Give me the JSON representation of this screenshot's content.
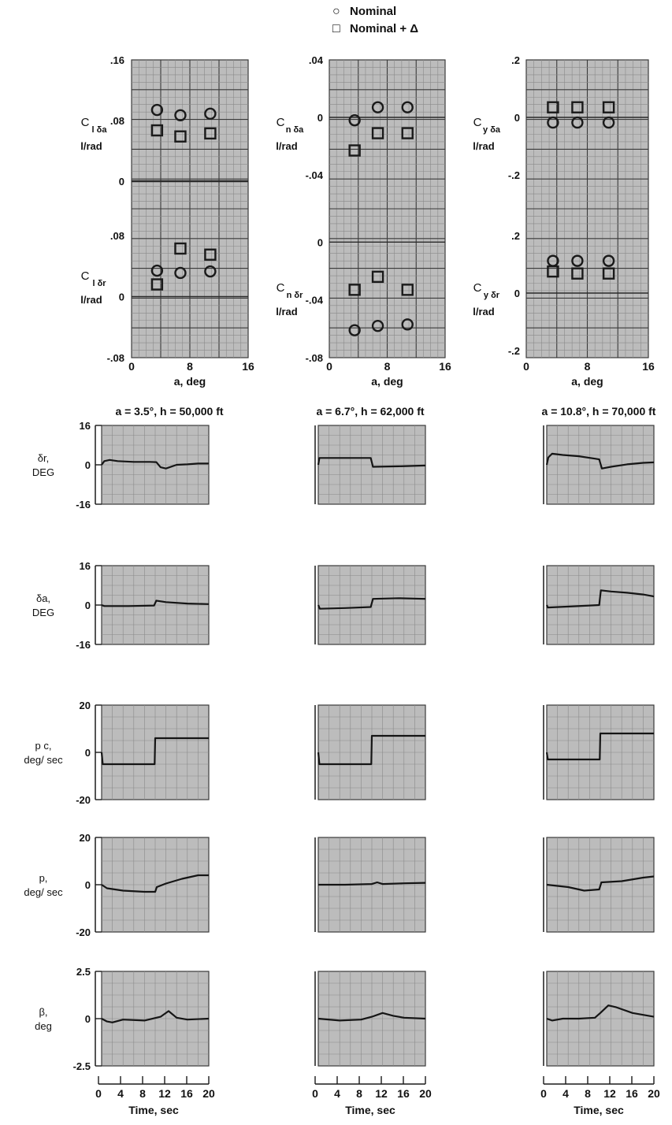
{
  "legend": [
    {
      "symbol": "circle",
      "label": "Nominal"
    },
    {
      "symbol": "square",
      "label": "Nominal + Δ"
    }
  ],
  "colors": {
    "grid_fill": "#bcbcbc",
    "grid_line": "#8a8a8a",
    "grid_major": "#3a3a3a",
    "trace": "#151515",
    "text": "#111111"
  },
  "chart_data": [
    {
      "type": "scatter",
      "column": 0,
      "xlabel": "a, deg",
      "xlim": [
        0,
        16
      ],
      "xticks": [
        "0",
        "8",
        "16"
      ],
      "panels": [
        {
          "ylabel": [
            "C",
            "l δa",
            "l/rad"
          ],
          "ylim": [
            0,
            0.16
          ],
          "yticks": [
            ".16",
            ".08",
            "0"
          ],
          "series": [
            {
              "name": "Nominal",
              "marker": "circle",
              "x": [
                3.5,
                6.7,
                10.8
              ],
              "y": [
                0.094,
                0.087,
                0.089
              ]
            },
            {
              "name": "Nominal + Δ",
              "marker": "square",
              "x": [
                3.5,
                6.7,
                10.8
              ],
              "y": [
                0.067,
                0.059,
                0.063
              ]
            }
          ]
        },
        {
          "ylabel": [
            "C",
            "l δr",
            "l/rad"
          ],
          "ylim": [
            -0.08,
            0.16
          ],
          "yticks": [
            ".08",
            "0",
            "-.08"
          ],
          "series": [
            {
              "name": "Nominal",
              "marker": "circle",
              "x": [
                3.5,
                6.7,
                10.8
              ],
              "y": [
                0.034,
                0.031,
                0.033
              ]
            },
            {
              "name": "Nominal + Δ",
              "marker": "square",
              "x": [
                3.5,
                6.7,
                10.8
              ],
              "y": [
                0.016,
                0.063,
                0.055
              ]
            }
          ]
        }
      ]
    },
    {
      "type": "scatter",
      "column": 1,
      "xlabel": "a, deg",
      "xlim": [
        0,
        16
      ],
      "xticks": [
        "0",
        "8",
        "16"
      ],
      "panels": [
        {
          "ylabel": [
            "C",
            "n δa",
            "l/rad"
          ],
          "ylim": [
            -0.04,
            0.04
          ],
          "yticks": [
            ".04",
            "0",
            "-.04"
          ],
          "series": [
            {
              "name": "Nominal",
              "marker": "circle",
              "x": [
                3.5,
                6.7,
                10.8
              ],
              "y": [
                -0.002,
                0.007,
                0.007
              ]
            },
            {
              "name": "Nominal + Δ",
              "marker": "square",
              "x": [
                3.5,
                6.7,
                10.8
              ],
              "y": [
                -0.023,
                -0.011,
                -0.011
              ]
            }
          ]
        },
        {
          "ylabel": [
            "C",
            "n δr",
            "l/rad"
          ],
          "ylim": [
            -0.08,
            0.04
          ],
          "yticks": [
            "0",
            "-.04",
            "-.08"
          ],
          "series": [
            {
              "name": "Nominal",
              "marker": "circle",
              "x": [
                3.5,
                6.7,
                10.8
              ],
              "y": [
                -0.061,
                -0.058,
                -0.057
              ]
            },
            {
              "name": "Nominal + Δ",
              "marker": "square",
              "x": [
                3.5,
                6.7,
                10.8
              ],
              "y": [
                -0.033,
                -0.024,
                -0.033
              ]
            }
          ]
        }
      ]
    },
    {
      "type": "scatter",
      "column": 2,
      "xlabel": "a, deg",
      "xlim": [
        0,
        16
      ],
      "xticks": [
        "0",
        "8",
        "16"
      ],
      "panels": [
        {
          "ylabel": [
            "C",
            "y δa",
            "l/rad"
          ],
          "ylim": [
            -0.2,
            0.2
          ],
          "yticks": [
            ".2",
            "0",
            "-.2"
          ],
          "series": [
            {
              "name": "Nominal",
              "marker": "circle",
              "x": [
                3.5,
                6.7,
                10.8
              ],
              "y": [
                -0.018,
                -0.018,
                -0.018
              ]
            },
            {
              "name": "Nominal + Δ",
              "marker": "square",
              "x": [
                3.5,
                6.7,
                10.8
              ],
              "y": [
                0.035,
                0.035,
                0.035
              ]
            }
          ]
        },
        {
          "ylabel": [
            "C",
            "y δr",
            "l/rad"
          ],
          "ylim": [
            -0.2,
            0.2
          ],
          "yticks": [
            ".2",
            "0",
            "-.2"
          ],
          "series": [
            {
              "name": "Nominal",
              "marker": "circle",
              "x": [
                3.5,
                6.7,
                10.8
              ],
              "y": [
                0.112,
                0.112,
                0.112
              ]
            },
            {
              "name": "Nominal + Δ",
              "marker": "square",
              "x": [
                3.5,
                6.7,
                10.8
              ],
              "y": [
                0.075,
                0.068,
                0.068
              ]
            }
          ]
        }
      ]
    },
    {
      "type": "line",
      "column": 0,
      "title": "a = 3.5°, h = 50,000 ft",
      "xlabel": "Time, sec",
      "xlim": [
        0,
        20
      ],
      "xticks": [
        "0",
        "4",
        "8",
        "12",
        "16",
        "20"
      ],
      "panels": [
        {
          "ylabel": [
            "δr,",
            "DEG"
          ],
          "ylim": [
            -16,
            16
          ],
          "yticks": [
            "16",
            "0",
            "-16"
          ],
          "x": [
            0,
            0.5,
            1.5,
            3,
            6,
            9,
            10.2,
            11,
            12,
            14,
            16,
            18,
            20
          ],
          "y": [
            0,
            1.5,
            2,
            1.5,
            1.2,
            1.2,
            1.1,
            -1,
            -1.5,
            0,
            0.2,
            0.5,
            0.5
          ]
        },
        {
          "ylabel": [
            "δa,",
            "DEG"
          ],
          "ylim": [
            -16,
            16
          ],
          "yticks": [
            "16",
            "0",
            "-16"
          ],
          "x": [
            0,
            0.5,
            5,
            9.8,
            10.2,
            12,
            16,
            20
          ],
          "y": [
            0,
            -0.4,
            -0.4,
            -0.2,
            1.8,
            1.2,
            0.6,
            0.4
          ]
        },
        {
          "ylabel": [
            "p c,",
            "deg/ sec"
          ],
          "ylim": [
            -20,
            20
          ],
          "yticks": [
            "20",
            "0",
            "-20"
          ],
          "x": [
            0,
            0.2,
            9.9,
            10,
            20
          ],
          "y": [
            0,
            -5,
            -5,
            6,
            6
          ]
        },
        {
          "ylabel": [
            "p,",
            "deg/ sec"
          ],
          "ylim": [
            -20,
            20
          ],
          "yticks": [
            "20",
            "0",
            "-20"
          ],
          "x": [
            0,
            1,
            4,
            8,
            10,
            10.3,
            12,
            15,
            18,
            20
          ],
          "y": [
            0,
            -1.5,
            -2.5,
            -3,
            -3,
            -1,
            0.5,
            2.5,
            4,
            4
          ]
        },
        {
          "ylabel": [
            "β,",
            "deg"
          ],
          "ylim": [
            -2.5,
            2.5
          ],
          "yticks": [
            "2.5",
            "0",
            "-2.5"
          ],
          "x": [
            0,
            1,
            2,
            4,
            8,
            11,
            12.5,
            14,
            16,
            20
          ],
          "y": [
            0,
            -0.15,
            -0.2,
            -0.05,
            -0.1,
            0.1,
            0.4,
            0.05,
            -0.05,
            0
          ]
        }
      ]
    },
    {
      "type": "line",
      "column": 1,
      "title": "a = 6.7°, h = 62,000 ft",
      "xlabel": "Time, sec",
      "xlim": [
        0,
        20
      ],
      "xticks": [
        "0",
        "4",
        "8",
        "12",
        "16",
        "20"
      ],
      "panels": [
        {
          "ylabel": [],
          "ylim": [
            -16,
            16
          ],
          "yticks": [],
          "x": [
            0,
            0.2,
            5,
            9.8,
            10.2,
            15,
            20
          ],
          "y": [
            0,
            2.8,
            2.8,
            2.8,
            -0.8,
            -0.6,
            -0.3
          ]
        },
        {
          "ylabel": [],
          "ylim": [
            -16,
            16
          ],
          "yticks": [],
          "x": [
            0,
            0.3,
            5,
            9.8,
            10.2,
            15,
            20
          ],
          "y": [
            0,
            -1.5,
            -1.2,
            -0.8,
            2.5,
            2.8,
            2.5
          ]
        },
        {
          "ylabel": [],
          "ylim": [
            -20,
            20
          ],
          "yticks": [],
          "x": [
            0,
            0.2,
            9.9,
            10,
            20
          ],
          "y": [
            0,
            -5,
            -5,
            7,
            7
          ]
        },
        {
          "ylabel": [],
          "ylim": [
            -20,
            20
          ],
          "yticks": [],
          "x": [
            0,
            5,
            10,
            11,
            12,
            16,
            20
          ],
          "y": [
            0,
            0,
            0.3,
            1,
            0.3,
            0.6,
            0.8
          ]
        },
        {
          "ylabel": [],
          "ylim": [
            -2.5,
            2.5
          ],
          "yticks": [],
          "x": [
            0,
            4,
            8,
            10,
            12,
            14,
            16,
            20
          ],
          "y": [
            0,
            -0.1,
            -0.05,
            0.1,
            0.3,
            0.15,
            0.05,
            0
          ]
        }
      ]
    },
    {
      "type": "line",
      "column": 2,
      "title": "a = 10.8°, h = 70,000 ft",
      "xlabel": "Time, sec",
      "xlim": [
        0,
        20
      ],
      "xticks": [
        "0",
        "4",
        "8",
        "12",
        "16",
        "20"
      ],
      "panels": [
        {
          "ylabel": [],
          "ylim": [
            -16,
            16
          ],
          "yticks": [],
          "x": [
            0,
            0.3,
            1,
            3,
            6,
            9,
            9.8,
            10.3,
            12,
            15,
            18,
            20
          ],
          "y": [
            0,
            3,
            4.5,
            4,
            3.5,
            2.5,
            2.2,
            -1.5,
            -0.8,
            0.2,
            0.8,
            1
          ]
        },
        {
          "ylabel": [],
          "ylim": [
            -16,
            16
          ],
          "yticks": [],
          "x": [
            0,
            0.2,
            5,
            9.8,
            10.1,
            12,
            15,
            18,
            20
          ],
          "y": [
            0,
            -1,
            -0.5,
            0,
            6,
            5.5,
            5,
            4.3,
            3.5
          ]
        },
        {
          "ylabel": [],
          "ylim": [
            -20,
            20
          ],
          "yticks": [],
          "x": [
            0,
            0.2,
            9.9,
            10,
            20
          ],
          "y": [
            0,
            -3,
            -3,
            8,
            8
          ]
        },
        {
          "ylabel": [],
          "ylim": [
            -20,
            20
          ],
          "yticks": [],
          "x": [
            0,
            4,
            7,
            9.8,
            10.2,
            14,
            18,
            20
          ],
          "y": [
            0,
            -1,
            -2.5,
            -2,
            1,
            1.5,
            3,
            3.5
          ]
        },
        {
          "ylabel": [],
          "ylim": [
            -2.5,
            2.5
          ],
          "yticks": [],
          "x": [
            0,
            1,
            3,
            6,
            9,
            10,
            11.5,
            13,
            16,
            20
          ],
          "y": [
            0,
            -0.1,
            0,
            0,
            0.05,
            0.3,
            0.7,
            0.6,
            0.3,
            0.1
          ]
        }
      ]
    }
  ]
}
